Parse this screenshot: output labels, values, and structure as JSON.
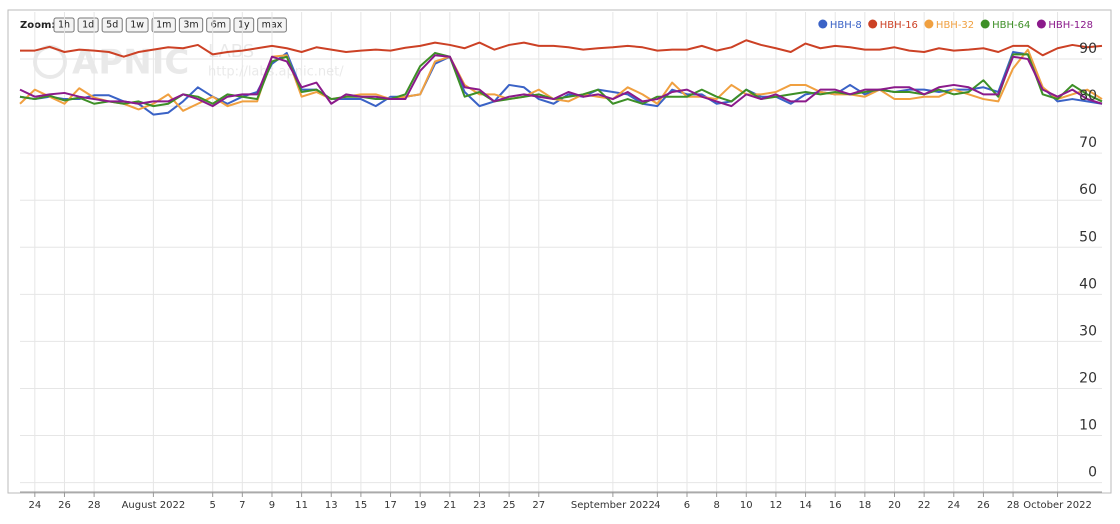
{
  "zoom": {
    "label": "Zoom:",
    "buttons": [
      "1h",
      "1d",
      "5d",
      "1w",
      "1m",
      "3m",
      "6m",
      "1y",
      "max"
    ]
  },
  "watermark": {
    "logo": "APNIC",
    "labs": "LABS",
    "url": "http://labs.apnic.net/"
  },
  "chart_data": {
    "type": "line",
    "grid": true,
    "legend": "top-right",
    "x": [
      "2022-07-23",
      "2022-07-24",
      "2022-07-25",
      "2022-07-26",
      "2022-07-27",
      "2022-07-28",
      "2022-07-29",
      "2022-07-30",
      "2022-07-31",
      "2022-08-01",
      "2022-08-02",
      "2022-08-03",
      "2022-08-04",
      "2022-08-05",
      "2022-08-06",
      "2022-08-07",
      "2022-08-08",
      "2022-08-09",
      "2022-08-10",
      "2022-08-11",
      "2022-08-12",
      "2022-08-13",
      "2022-08-14",
      "2022-08-15",
      "2022-08-16",
      "2022-08-17",
      "2022-08-18",
      "2022-08-19",
      "2022-08-20",
      "2022-08-21",
      "2022-08-22",
      "2022-08-23",
      "2022-08-24",
      "2022-08-25",
      "2022-08-26",
      "2022-08-27",
      "2022-08-28",
      "2022-08-29",
      "2022-08-30",
      "2022-08-31",
      "2022-09-01",
      "2022-09-02",
      "2022-09-03",
      "2022-09-04",
      "2022-09-05",
      "2022-09-06",
      "2022-09-07",
      "2022-09-08",
      "2022-09-09",
      "2022-09-10",
      "2022-09-11",
      "2022-09-12",
      "2022-09-13",
      "2022-09-14",
      "2022-09-15",
      "2022-09-16",
      "2022-09-17",
      "2022-09-18",
      "2022-09-19",
      "2022-09-20",
      "2022-09-21",
      "2022-09-22",
      "2022-09-23",
      "2022-09-24",
      "2022-09-25",
      "2022-09-26",
      "2022-09-27",
      "2022-09-28",
      "2022-09-29",
      "2022-09-30",
      "2022-10-01",
      "2022-10-02",
      "2022-10-03",
      "2022-10-04"
    ],
    "xlim": [
      "2022-07-23",
      "2022-10-04"
    ],
    "xticks": [
      {
        "value": "2022-07-24",
        "label": "24"
      },
      {
        "value": "2022-07-26",
        "label": "26"
      },
      {
        "value": "2022-07-28",
        "label": "28"
      },
      {
        "value": "2022-08-01",
        "label": "August 2022"
      },
      {
        "value": "2022-08-05",
        "label": "5"
      },
      {
        "value": "2022-08-07",
        "label": "7"
      },
      {
        "value": "2022-08-09",
        "label": "9"
      },
      {
        "value": "2022-08-11",
        "label": "11"
      },
      {
        "value": "2022-08-13",
        "label": "13"
      },
      {
        "value": "2022-08-15",
        "label": "15"
      },
      {
        "value": "2022-08-17",
        "label": "17"
      },
      {
        "value": "2022-08-19",
        "label": "19"
      },
      {
        "value": "2022-08-21",
        "label": "21"
      },
      {
        "value": "2022-08-23",
        "label": "23"
      },
      {
        "value": "2022-08-25",
        "label": "25"
      },
      {
        "value": "2022-08-27",
        "label": "27"
      },
      {
        "value": "2022-09-01",
        "label": "September 2022"
      },
      {
        "value": "2022-09-04",
        "label": "4"
      },
      {
        "value": "2022-09-06",
        "label": "6"
      },
      {
        "value": "2022-09-08",
        "label": "8"
      },
      {
        "value": "2022-09-10",
        "label": "10"
      },
      {
        "value": "2022-09-12",
        "label": "12"
      },
      {
        "value": "2022-09-14",
        "label": "14"
      },
      {
        "value": "2022-09-16",
        "label": "16"
      },
      {
        "value": "2022-09-18",
        "label": "18"
      },
      {
        "value": "2022-09-20",
        "label": "20"
      },
      {
        "value": "2022-09-22",
        "label": "22"
      },
      {
        "value": "2022-09-24",
        "label": "24"
      },
      {
        "value": "2022-09-26",
        "label": "26"
      },
      {
        "value": "2022-09-28",
        "label": "28"
      },
      {
        "value": "2022-10-01",
        "label": "October 2022"
      }
    ],
    "ylim": [
      -2,
      100
    ],
    "yticks": [
      0,
      10,
      20,
      30,
      40,
      50,
      60,
      70,
      80,
      90
    ],
    "series": [
      {
        "name": "HBH-8",
        "color": "#3a62c6",
        "values": [
          82,
          81.5,
          82,
          81.5,
          81.5,
          82.3,
          82.3,
          81,
          80.5,
          78.2,
          78.6,
          81,
          84,
          82,
          80.5,
          82,
          83,
          89,
          91.3,
          83.5,
          83.5,
          81.5,
          81.5,
          81.5,
          80,
          82,
          82,
          82.5,
          89,
          90.5,
          83,
          80,
          81,
          84.5,
          84,
          81.5,
          80.5,
          82.5,
          82,
          83.5,
          83,
          82.5,
          80.5,
          80,
          83.5,
          82.5,
          82.5,
          80.5,
          81,
          83.5,
          82,
          82,
          80.5,
          82.5,
          83,
          82.5,
          84.5,
          82.5,
          83.5,
          83,
          83.5,
          83.5,
          83,
          83.5,
          83.5,
          84,
          83,
          91.5,
          91,
          84,
          81,
          81.5,
          81,
          80.5
        ]
      },
      {
        "name": "HBH-16",
        "color": "#cc4125",
        "values": [
          91.8,
          91.8,
          92.6,
          91.5,
          92,
          91.8,
          91.5,
          90.5,
          91.5,
          92,
          92.5,
          92.3,
          93,
          91,
          91.5,
          91.8,
          92.3,
          92.8,
          92.3,
          91.5,
          92.5,
          92,
          91.5,
          91.8,
          92,
          91.8,
          92.4,
          92.8,
          93.5,
          93,
          92.3,
          93.5,
          92,
          93,
          93.5,
          92.8,
          92.8,
          92.5,
          92,
          92.3,
          92.5,
          92.8,
          92.5,
          91.8,
          92,
          92,
          92.8,
          91.8,
          92.5,
          94,
          93,
          92.3,
          91.5,
          93.3,
          92.3,
          92.8,
          92.5,
          92,
          92,
          92.5,
          91.8,
          91.5,
          92.3,
          91.8,
          92,
          92.3,
          91.5,
          92.8,
          92.8,
          90.8,
          92.3,
          93,
          92.5,
          92.8
        ]
      },
      {
        "name": "HBH-32",
        "color": "#f0a040",
        "values": [
          80.5,
          83.5,
          82,
          80.5,
          83.8,
          81.8,
          81,
          80.5,
          79.3,
          80.5,
          82.5,
          79,
          80.5,
          82,
          80,
          81,
          81,
          90.5,
          90.8,
          82,
          83,
          81.5,
          82,
          82.5,
          82.5,
          81.5,
          82,
          82.5,
          89.5,
          90.5,
          84.5,
          82.5,
          82.5,
          81.5,
          82,
          83.5,
          81.5,
          81,
          82.5,
          82,
          81.5,
          84,
          82.5,
          80.5,
          85,
          82,
          82,
          81.5,
          84.5,
          82.5,
          82.5,
          83,
          84.5,
          84.5,
          83,
          82.5,
          82.5,
          82,
          83.5,
          81.5,
          81.5,
          82,
          82,
          83.5,
          82.5,
          81.5,
          81,
          88,
          92,
          84,
          81.5,
          82.5,
          83.5,
          81.5
        ]
      },
      {
        "name": "HBH-64",
        "color": "#3d8f26",
        "values": [
          82,
          81.5,
          82.2,
          81.2,
          81.8,
          80.5,
          81,
          80.5,
          81,
          80,
          80.5,
          82.5,
          82,
          80.5,
          82.5,
          82,
          81.5,
          89.5,
          90.5,
          83,
          83.5,
          81.5,
          82,
          82,
          81.5,
          81.5,
          82.5,
          88.5,
          91.3,
          90.5,
          82,
          83,
          81,
          81.5,
          82,
          82.5,
          81.5,
          82,
          82.5,
          83.5,
          80.5,
          81.5,
          80.5,
          82,
          82,
          82,
          83.5,
          82,
          81,
          83.5,
          81.5,
          82,
          82.5,
          83,
          82.5,
          83,
          82.5,
          83,
          83.5,
          83,
          83,
          82.5,
          83.5,
          82.5,
          83,
          85.5,
          82,
          91,
          91,
          82.5,
          81.5,
          84.5,
          82.5,
          81
        ]
      },
      {
        "name": "HBH-128",
        "color": "#8b1a8b",
        "values": [
          83.5,
          82,
          82.5,
          82.8,
          82,
          81.5,
          81,
          81,
          80.5,
          81,
          81,
          82.5,
          81.5,
          80,
          82,
          82.5,
          82.5,
          90.5,
          89.5,
          84,
          85,
          80.5,
          82.5,
          82,
          82,
          81.5,
          81.5,
          87.5,
          90.8,
          90.5,
          84,
          83.5,
          81,
          82,
          82.5,
          82,
          81.5,
          83,
          82,
          82.5,
          81.5,
          83,
          81,
          81.5,
          83,
          83.5,
          82,
          81,
          80,
          82.5,
          81.5,
          82.5,
          81,
          81,
          83.5,
          83.5,
          82.5,
          83.5,
          83.5,
          84,
          84,
          82.5,
          84,
          84.5,
          84,
          82.5,
          82.5,
          90.5,
          90,
          83.5,
          82,
          83.5,
          81.5,
          80.5
        ]
      }
    ]
  }
}
